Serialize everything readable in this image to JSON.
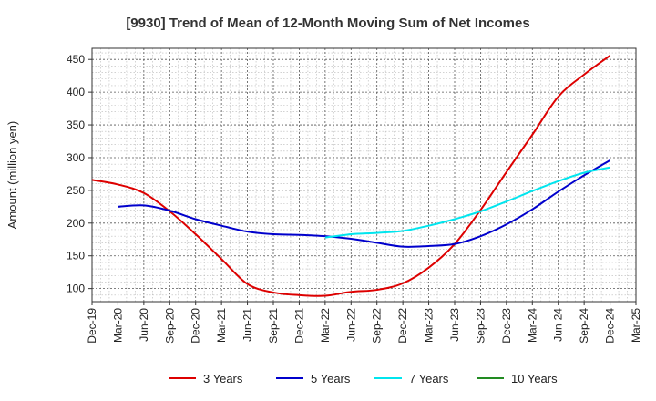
{
  "chart_data": {
    "type": "line",
    "title": "[9930]  Trend of Mean of 12-Month Moving Sum of Net Incomes",
    "xlabel": "",
    "ylabel": "Amount (million yen)",
    "ylim": [
      80,
      467
    ],
    "yticks": [
      100,
      150,
      200,
      250,
      300,
      350,
      400,
      450
    ],
    "grid": true,
    "legend_position": "bottom",
    "x_ticks": [
      "Dec-19",
      "Mar-20",
      "Jun-20",
      "Sep-20",
      "Dec-20",
      "Mar-21",
      "Jun-21",
      "Sep-21",
      "Dec-21",
      "Mar-22",
      "Jun-22",
      "Sep-22",
      "Dec-22",
      "Mar-23",
      "Jun-23",
      "Sep-23",
      "Dec-23",
      "Mar-24",
      "Jun-24",
      "Sep-24",
      "Dec-24",
      "Mar-25"
    ],
    "series": [
      {
        "name": "3 Years",
        "color": "#dd0000",
        "values": [
          266,
          259,
          246,
          218,
          183,
          145,
          107,
          94,
          90,
          89,
          95,
          98,
          108,
          132,
          168,
          220,
          278,
          335,
          393,
          427,
          456,
          null
        ]
      },
      {
        "name": "5 Years",
        "color": "#0000cc",
        "values": [
          null,
          225,
          227,
          219,
          206,
          196,
          187,
          183,
          182,
          180,
          176,
          170,
          164,
          165,
          168,
          180,
          198,
          221,
          248,
          273,
          296,
          null
        ]
      },
      {
        "name": "7 Years",
        "color": "#00e5ee",
        "values": [
          null,
          null,
          null,
          null,
          null,
          null,
          null,
          null,
          null,
          178,
          183,
          185,
          188,
          196,
          206,
          218,
          233,
          249,
          264,
          277,
          285,
          null
        ]
      },
      {
        "name": "10 Years",
        "color": "#228b22",
        "values": [
          null,
          null,
          null,
          null,
          null,
          null,
          null,
          null,
          null,
          null,
          null,
          null,
          null,
          null,
          null,
          null,
          null,
          null,
          null,
          null,
          null,
          null
        ]
      }
    ]
  }
}
